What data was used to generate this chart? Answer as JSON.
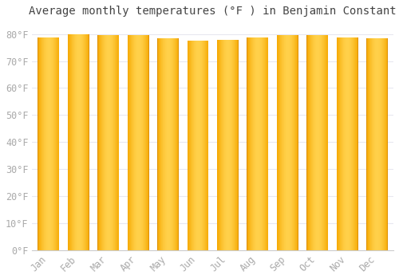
{
  "title": "Average monthly temperatures (°F ) in Benjamin Constant",
  "months": [
    "Jan",
    "Feb",
    "Mar",
    "Apr",
    "May",
    "Jun",
    "Jul",
    "Aug",
    "Sep",
    "Oct",
    "Nov",
    "Dec"
  ],
  "values": [
    78.8,
    79.9,
    79.5,
    79.5,
    78.4,
    77.4,
    77.9,
    78.8,
    79.7,
    79.5,
    78.8,
    78.4
  ],
  "bar_color_center": "#FFD04A",
  "bar_color_edge": "#F5A800",
  "background_color": "#ffffff",
  "grid_color": "#e8e8f0",
  "yticks": [
    0,
    10,
    20,
    30,
    40,
    50,
    60,
    70,
    80
  ],
  "ylim": [
    0,
    84
  ],
  "title_fontsize": 10,
  "tick_fontsize": 8.5,
  "tick_font_family": "monospace",
  "tick_color": "#aaaaaa",
  "bar_width": 0.72
}
